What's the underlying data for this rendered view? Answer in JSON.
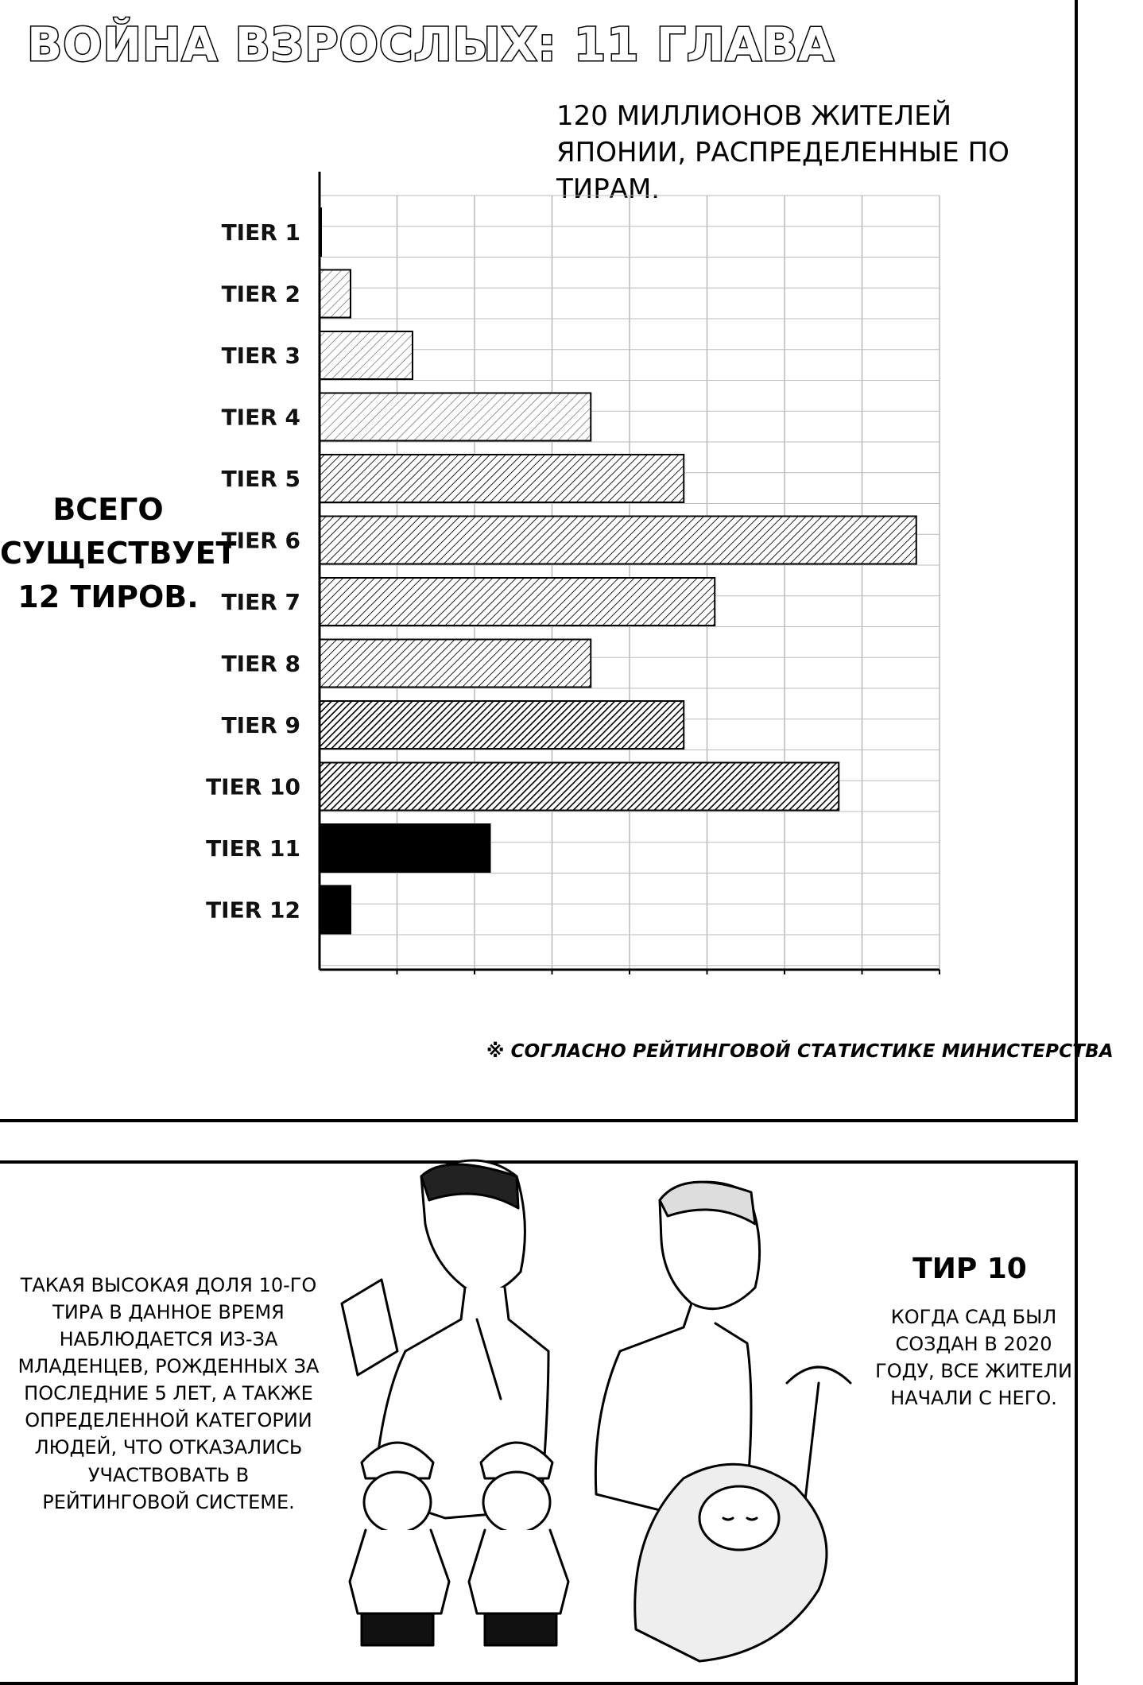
{
  "page": {
    "title": "ВОЙНА ВЗРОСЛЫХ: 11 ГЛАВА"
  },
  "chart_data": {
    "type": "bar",
    "orientation": "horizontal",
    "title": "120 МИЛЛИОНОВ ЖИТЕЛЕЙ ЯПОНИИ, РАСПРЕДЕЛЕННЫЕ ПО ТИРАМ.",
    "categories": [
      "TIER 1",
      "TIER 2",
      "TIER 3",
      "TIER 4",
      "TIER 5",
      "TIER 6",
      "TIER 7",
      "TIER 8",
      "TIER 9",
      "TIER 10",
      "TIER 11",
      "TIER 12"
    ],
    "values": [
      0.02,
      0.4,
      1.2,
      3.5,
      4.7,
      7.7,
      5.1,
      3.5,
      4.7,
      6.7,
      2.2,
      0.4
    ],
    "xlim": [
      0,
      8
    ],
    "xlabel": "",
    "ylabel": "",
    "grid": true,
    "fills": [
      "black",
      "light-hatch",
      "light-hatch",
      "light-hatch",
      "medium-hatch",
      "medium-hatch",
      "medium-hatch",
      "medium-hatch",
      "dense-hatch",
      "dense-hatch",
      "black",
      "black"
    ]
  },
  "side_note": "ВСЕГО СУЩЕСТВУЕТ 12 ТИРОВ.",
  "footnote": {
    "mark": "※",
    "text": "СОГЛАСНО РЕЙТИНГОВОЙ СТАТИСТИКЕ МИНИСТЕРСТВА"
  },
  "bottom": {
    "left_text": "ТАКАЯ ВЫСОКАЯ ДОЛЯ 10-ГО ТИРА В ДАННОЕ ВРЕМЯ НАБЛЮДАЕТСЯ ИЗ-ЗА МЛАДЕНЦЕВ, РОЖДЕННЫХ ЗА ПОСЛЕДНИЕ 5 ЛЕТ, А ТАКЖЕ ОПРЕДЕЛЕННОЙ КАТЕГОРИИ ЛЮДЕЙ, ЧТО ОТКАЗАЛИСЬ УЧАСТВОВАТЬ В РЕЙТИНГОВОЙ СИСТЕМЕ.",
    "tier_heading": "ТИР 10",
    "right_text": "КОГДА САД БЫЛ СОЗДАН В 2020 ГОДУ, ВСЕ ЖИТЕЛИ НАЧАЛИ С НЕГО."
  }
}
